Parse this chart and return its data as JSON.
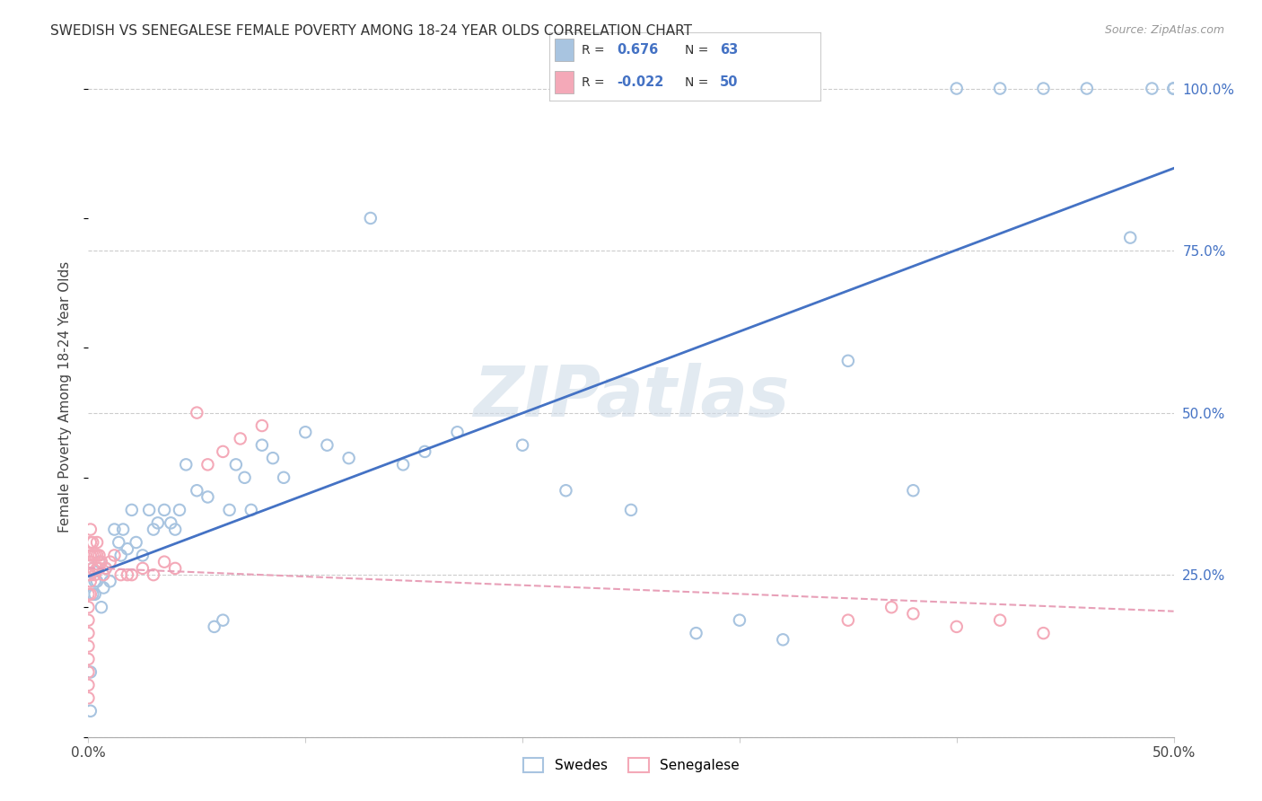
{
  "title": "SWEDISH VS SENEGALESE FEMALE POVERTY AMONG 18-24 YEAR OLDS CORRELATION CHART",
  "source": "Source: ZipAtlas.com",
  "ylabel": "Female Poverty Among 18-24 Year Olds",
  "xlim": [
    0.0,
    0.5
  ],
  "ylim": [
    0.0,
    1.05
  ],
  "ytick_positions": [
    0.0,
    0.25,
    0.5,
    0.75,
    1.0
  ],
  "ytick_labels": [
    "",
    "25.0%",
    "50.0%",
    "75.0%",
    "100.0%"
  ],
  "swedish_R": "0.676",
  "swedish_N": "63",
  "senegalese_R": "-0.022",
  "senegalese_N": "50",
  "swedish_color": "#a8c4e0",
  "senegalese_color": "#f4a9b8",
  "swedish_line_color": "#4472c4",
  "senegalese_line_color": "#e8a0b8",
  "watermark": "ZIPatlas",
  "watermark_color": "#d0dce8",
  "swedish_x": [
    0.001,
    0.001,
    0.002,
    0.002,
    0.003,
    0.003,
    0.004,
    0.005,
    0.006,
    0.007,
    0.008,
    0.01,
    0.012,
    0.014,
    0.015,
    0.016,
    0.018,
    0.02,
    0.022,
    0.025,
    0.028,
    0.03,
    0.032,
    0.035,
    0.038,
    0.04,
    0.042,
    0.045,
    0.05,
    0.055,
    0.058,
    0.062,
    0.065,
    0.068,
    0.072,
    0.075,
    0.08,
    0.085,
    0.09,
    0.1,
    0.11,
    0.12,
    0.13,
    0.145,
    0.155,
    0.17,
    0.2,
    0.22,
    0.25,
    0.28,
    0.3,
    0.32,
    0.35,
    0.38,
    0.4,
    0.42,
    0.44,
    0.46,
    0.48,
    0.49,
    0.5,
    0.5,
    0.5
  ],
  "swedish_y": [
    0.04,
    0.1,
    0.22,
    0.26,
    0.24,
    0.22,
    0.24,
    0.27,
    0.2,
    0.23,
    0.26,
    0.24,
    0.32,
    0.3,
    0.28,
    0.32,
    0.29,
    0.35,
    0.3,
    0.28,
    0.35,
    0.32,
    0.33,
    0.35,
    0.33,
    0.32,
    0.35,
    0.42,
    0.38,
    0.37,
    0.17,
    0.18,
    0.35,
    0.42,
    0.4,
    0.35,
    0.45,
    0.43,
    0.4,
    0.47,
    0.45,
    0.43,
    0.8,
    0.42,
    0.44,
    0.47,
    0.45,
    0.38,
    0.35,
    0.16,
    0.18,
    0.15,
    0.58,
    0.38,
    1.0,
    1.0,
    1.0,
    1.0,
    0.77,
    1.0,
    1.0,
    1.0,
    1.0
  ],
  "senegalese_x": [
    0.0,
    0.0,
    0.0,
    0.0,
    0.0,
    0.0,
    0.0,
    0.0,
    0.0,
    0.0,
    0.001,
    0.001,
    0.001,
    0.001,
    0.001,
    0.001,
    0.001,
    0.002,
    0.002,
    0.002,
    0.003,
    0.003,
    0.004,
    0.004,
    0.004,
    0.005,
    0.005,
    0.006,
    0.007,
    0.008,
    0.01,
    0.012,
    0.015,
    0.018,
    0.02,
    0.025,
    0.03,
    0.035,
    0.04,
    0.05,
    0.055,
    0.062,
    0.07,
    0.08,
    0.35,
    0.37,
    0.38,
    0.4,
    0.42,
    0.44
  ],
  "senegalese_y": [
    0.06,
    0.08,
    0.1,
    0.12,
    0.14,
    0.16,
    0.18,
    0.2,
    0.22,
    0.25,
    0.22,
    0.24,
    0.25,
    0.27,
    0.28,
    0.3,
    0.32,
    0.26,
    0.28,
    0.3,
    0.25,
    0.28,
    0.26,
    0.28,
    0.3,
    0.26,
    0.28,
    0.27,
    0.25,
    0.26,
    0.27,
    0.28,
    0.25,
    0.25,
    0.25,
    0.26,
    0.25,
    0.27,
    0.26,
    0.5,
    0.42,
    0.44,
    0.46,
    0.48,
    0.18,
    0.2,
    0.19,
    0.17,
    0.18,
    0.16
  ]
}
